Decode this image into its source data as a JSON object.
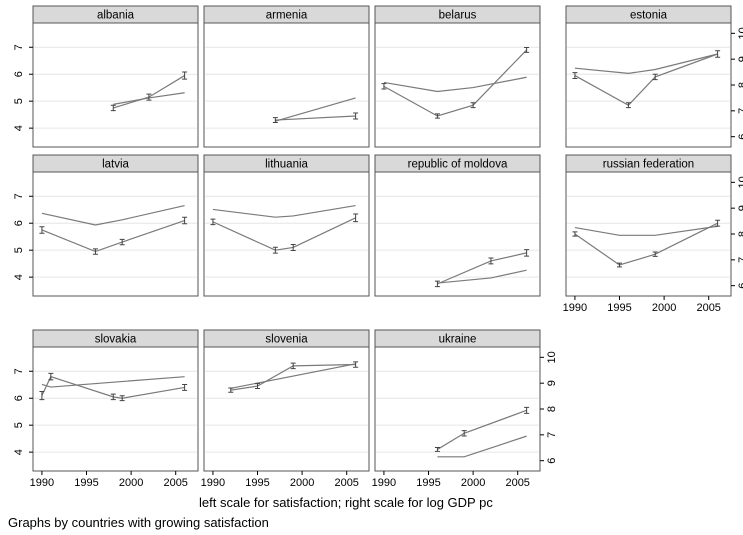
{
  "figure": {
    "note_scales": "left scale for satisfaction; right scale for log GDP pc",
    "note_graphs": "Graphs by countries with growing satisfaction"
  },
  "chart_data": {
    "type": "line",
    "layout": "small-multiples 4 columns x 3 rows",
    "left_axis": {
      "label": "satisfaction",
      "ylim": [
        3.3,
        7.9
      ],
      "ticks": [
        4,
        5,
        6,
        7
      ]
    },
    "right_axis": {
      "label": "log GDP pc",
      "ylim": [
        5.6,
        10.4
      ],
      "ticks": [
        6,
        7,
        8,
        9,
        10
      ]
    },
    "x_axis": {
      "xlim": [
        1989,
        2007.5
      ],
      "ticks": [
        1990,
        1995,
        2000,
        2005
      ]
    },
    "grid": true,
    "colors": {
      "line": "#7a7a7a",
      "header_fill": "#d9d9d9",
      "grid": "#e6e6e6",
      "frame": "#555555"
    },
    "panels": [
      {
        "title": "albania",
        "satisfaction": {
          "x": [
            1998,
            2002,
            2006
          ],
          "y": [
            4.75,
            5.15,
            5.95
          ],
          "err": [
            0.1,
            0.11,
            0.13
          ]
        },
        "log_gdp": {
          "x": [
            1998,
            2002,
            2006
          ],
          "y": [
            7.25,
            7.5,
            7.7
          ]
        }
      },
      {
        "title": "armenia",
        "satisfaction": {
          "x": [
            1997,
            2006
          ],
          "y": [
            4.3,
            4.45
          ],
          "err": [
            0.09,
            0.11
          ]
        },
        "log_gdp": {
          "x": [
            1997,
            2006
          ],
          "y": [
            6.6,
            7.5
          ]
        }
      },
      {
        "title": "belarus",
        "satisfaction": {
          "x": [
            1990,
            1996,
            2000,
            2006
          ],
          "y": [
            5.55,
            4.45,
            4.85,
            6.9
          ],
          "err": [
            0.1,
            0.08,
            0.09,
            0.09
          ]
        },
        "log_gdp": {
          "x": [
            1990,
            1996,
            2000,
            2006
          ],
          "y": [
            8.1,
            7.75,
            7.9,
            8.3
          ]
        }
      },
      {
        "title": "estonia",
        "satisfaction": {
          "x": [
            1990,
            1996,
            1999,
            2006
          ],
          "y": [
            5.95,
            4.85,
            5.9,
            6.75
          ],
          "err": [
            0.11,
            0.09,
            0.1,
            0.12
          ]
        },
        "log_gdp": {
          "x": [
            1990,
            1996,
            1999,
            2006
          ],
          "y": [
            8.65,
            8.45,
            8.6,
            9.2
          ]
        }
      },
      {
        "title": "latvia",
        "satisfaction": {
          "x": [
            1990,
            1996,
            1999,
            2006
          ],
          "y": [
            5.75,
            4.95,
            5.3,
            6.1
          ],
          "err": [
            0.12,
            0.1,
            0.1,
            0.12
          ]
        },
        "log_gdp": {
          "x": [
            1990,
            1996,
            1999,
            2006
          ],
          "y": [
            8.8,
            8.35,
            8.55,
            9.1
          ]
        }
      },
      {
        "title": "lithuania",
        "satisfaction": {
          "x": [
            1990,
            1997,
            1999,
            2006
          ],
          "y": [
            6.05,
            5.0,
            5.1,
            6.2
          ],
          "err": [
            0.1,
            0.11,
            0.11,
            0.14
          ]
        },
        "log_gdp": {
          "x": [
            1990,
            1997,
            1999,
            2006
          ],
          "y": [
            8.95,
            8.65,
            8.7,
            9.1
          ]
        }
      },
      {
        "title": "republic of moldova",
        "satisfaction": {
          "x": [
            1996,
            2002,
            2006
          ],
          "y": [
            3.75,
            4.6,
            4.9
          ],
          "err": [
            0.1,
            0.11,
            0.12
          ]
        },
        "log_gdp": {
          "x": [
            1996,
            2002,
            2006
          ],
          "y": [
            6.1,
            6.3,
            6.6
          ]
        }
      },
      {
        "title": "russian federation",
        "satisfaction": {
          "x": [
            1990,
            1995,
            1999,
            2006
          ],
          "y": [
            5.6,
            4.45,
            4.85,
            6.0
          ],
          "err": [
            0.08,
            0.07,
            0.08,
            0.11
          ]
        },
        "log_gdp": {
          "x": [
            1990,
            1995,
            1999,
            2006
          ],
          "y": [
            8.25,
            7.95,
            7.95,
            8.3
          ]
        }
      },
      {
        "title": "slovakia",
        "satisfaction": {
          "x": [
            1990,
            1991,
            1998,
            1999,
            2006
          ],
          "y": [
            6.1,
            6.8,
            6.05,
            6.0,
            6.4
          ],
          "err": [
            0.15,
            0.12,
            0.1,
            0.09,
            0.11
          ]
        },
        "log_gdp": {
          "x": [
            1990,
            1991,
            2006
          ],
          "y": [
            8.95,
            8.85,
            9.25
          ]
        }
      },
      {
        "title": "slovenia",
        "satisfaction": {
          "x": [
            1992,
            1995,
            1999,
            2006
          ],
          "y": [
            6.3,
            6.45,
            7.2,
            7.25
          ],
          "err": [
            0.08,
            0.09,
            0.1,
            0.1
          ]
        },
        "log_gdp": {
          "x": [
            1992,
            2006
          ],
          "y": [
            8.8,
            9.75
          ]
        }
      },
      {
        "title": "ukraine",
        "satisfaction": {
          "x": [
            1996,
            1999,
            2006
          ],
          "y": [
            4.1,
            4.7,
            5.55
          ],
          "err": [
            0.07,
            0.1,
            0.11
          ]
        },
        "log_gdp": {
          "x": [
            1996,
            1999,
            2006
          ],
          "y": [
            6.15,
            6.15,
            6.95
          ]
        }
      }
    ]
  }
}
